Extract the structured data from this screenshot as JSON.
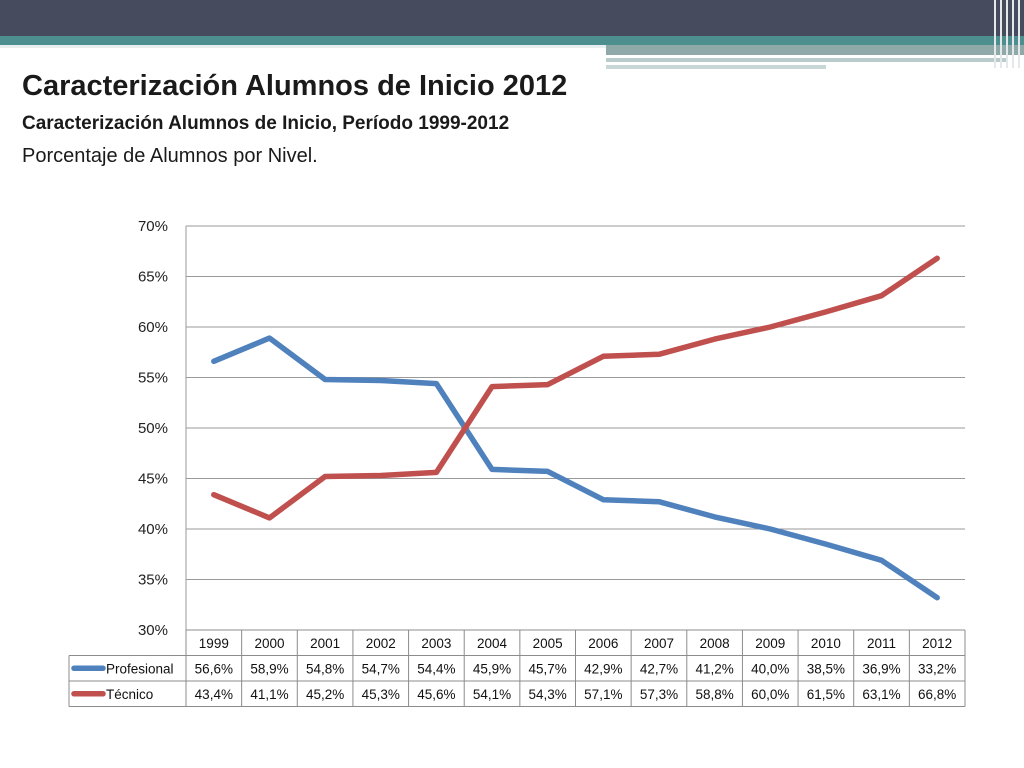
{
  "slide": {
    "title": "Caracterización Alumnos de Inicio 2012",
    "subtitle": "Caracterización Alumnos de Inicio, Período 1999-2012",
    "caption": "Porcentaje de Alumnos por Nivel."
  },
  "chart_data": {
    "type": "line",
    "title": "",
    "xlabel": "",
    "ylabel": "",
    "categories": [
      "1999",
      "2000",
      "2001",
      "2002",
      "2003",
      "2004",
      "2005",
      "2006",
      "2007",
      "2008",
      "2009",
      "2010",
      "2011",
      "2012"
    ],
    "ylim": [
      30,
      70
    ],
    "yticks": [
      30,
      35,
      40,
      45,
      50,
      55,
      60,
      65,
      70
    ],
    "ytick_labels": [
      "30%",
      "35%",
      "40%",
      "45%",
      "50%",
      "55%",
      "60%",
      "65%",
      "70%"
    ],
    "grid": true,
    "legend": "data-table",
    "series": [
      {
        "name": "Profesional",
        "color": "#4f81bd",
        "values": [
          56.6,
          58.9,
          54.8,
          54.7,
          54.4,
          45.9,
          45.7,
          42.9,
          42.7,
          41.2,
          40.0,
          38.5,
          36.9,
          33.2
        ],
        "labels": [
          "56,6%",
          "58,9%",
          "54,8%",
          "54,7%",
          "54,4%",
          "45,9%",
          "45,7%",
          "42,9%",
          "42,7%",
          "41,2%",
          "40,0%",
          "38,5%",
          "36,9%",
          "33,2%"
        ]
      },
      {
        "name": "Técnico",
        "color": "#c0504d",
        "values": [
          43.4,
          41.1,
          45.2,
          45.3,
          45.6,
          54.1,
          54.3,
          57.1,
          57.3,
          58.8,
          60.0,
          61.5,
          63.1,
          66.8
        ],
        "labels": [
          "43,4%",
          "41,1%",
          "45,2%",
          "45,3%",
          "45,6%",
          "54,1%",
          "54,3%",
          "57,1%",
          "57,3%",
          "58,8%",
          "60,0%",
          "61,5%",
          "63,1%",
          "66,8%"
        ]
      }
    ]
  }
}
